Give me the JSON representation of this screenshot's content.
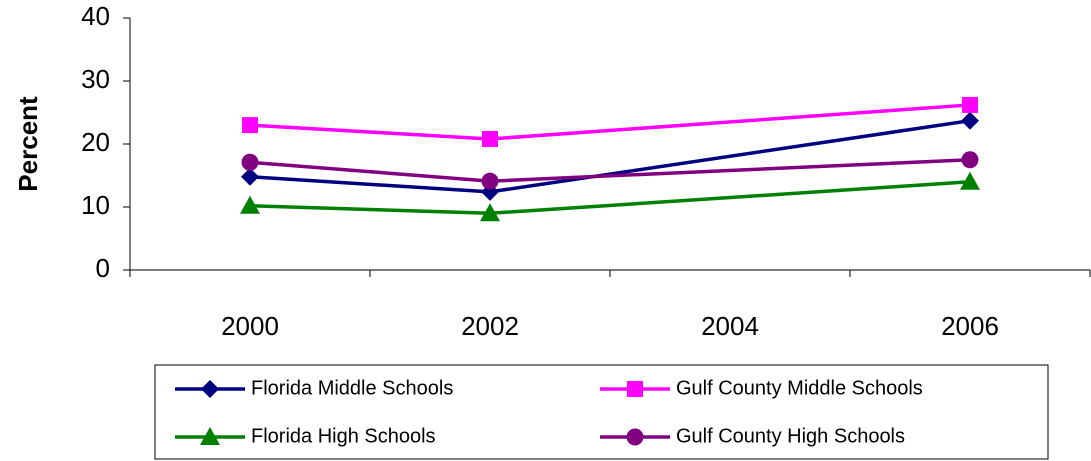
{
  "chart_data": {
    "type": "line",
    "y_label": "Percent",
    "x": [
      2000,
      2002,
      2006
    ],
    "xlim": [
      1999,
      2007
    ],
    "xticks": [
      2000,
      2002,
      2004,
      2006
    ],
    "ylim": [
      0,
      40
    ],
    "yticks": [
      0,
      10,
      20,
      30,
      40
    ],
    "grid": false,
    "series": [
      {
        "name": "Florida Middle Schools",
        "color": "#000080",
        "marker": "diamond",
        "values": [
          14.8,
          12.4,
          23.7
        ]
      },
      {
        "name": "Gulf County Middle Schools",
        "color": "#ff00ff",
        "marker": "square",
        "values": [
          23.0,
          20.8,
          26.2
        ]
      },
      {
        "name": "Florida High Schools",
        "color": "#008000",
        "marker": "triangle",
        "values": [
          10.2,
          9.0,
          14.0
        ]
      },
      {
        "name": "Gulf County High Schools",
        "color": "#800080",
        "marker": "circle",
        "values": [
          17.1,
          14.1,
          17.5
        ]
      }
    ]
  }
}
